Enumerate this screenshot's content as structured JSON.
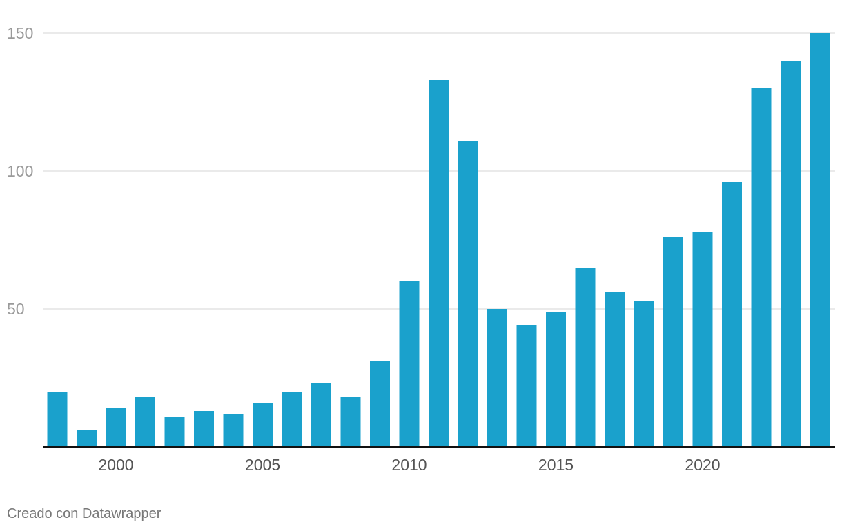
{
  "chart_data": {
    "type": "bar",
    "x": [
      1998,
      1999,
      2000,
      2001,
      2002,
      2003,
      2004,
      2005,
      2006,
      2007,
      2008,
      2009,
      2010,
      2011,
      2012,
      2013,
      2014,
      2015,
      2016,
      2017,
      2018,
      2019,
      2020,
      2021,
      2022,
      2023,
      2024
    ],
    "values": [
      20,
      6,
      14,
      18,
      11,
      13,
      12,
      16,
      20,
      23,
      18,
      31,
      60,
      133,
      111,
      50,
      44,
      49,
      65,
      56,
      53,
      76,
      78,
      96,
      130,
      140,
      150
    ],
    "x_tick_labels": [
      "2000",
      "2005",
      "2010",
      "2015",
      "2020"
    ],
    "y_tick_labels": [
      "150",
      "100",
      "50"
    ],
    "ylim": [
      0,
      150
    ],
    "grid": true,
    "title": "",
    "xlabel": "",
    "ylabel": "",
    "colors": {
      "bar": "#1aa1cc",
      "grid": "#e3e3e3",
      "axis": "#111111"
    }
  },
  "footer": {
    "credit": "Creado con Datawrapper"
  }
}
